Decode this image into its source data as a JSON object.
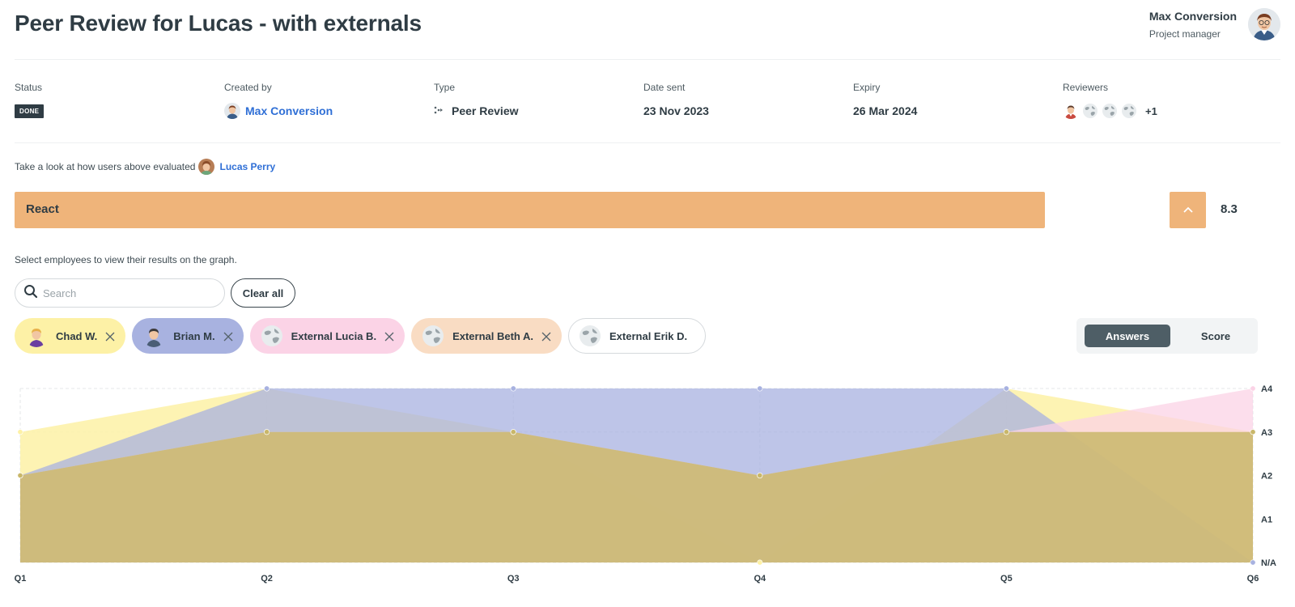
{
  "header": {
    "title": "Peer Review for Lucas - with externals",
    "user_name": "Max Conversion",
    "user_role": "Project manager"
  },
  "meta": {
    "status_label": "Status",
    "status_value": "DONE",
    "created_by_label": "Created by",
    "created_by_value": "Max Conversion",
    "type_label": "Type",
    "type_value": "Peer Review",
    "date_sent_label": "Date sent",
    "date_sent_value": "23 Nov 2023",
    "expiry_label": "Expiry",
    "expiry_value": "26 Mar 2024",
    "reviewers_label": "Reviewers",
    "reviewers_more": "+1"
  },
  "intro": {
    "text": "Take a look at how users above evaluated",
    "subject_name": "Lucas Perry"
  },
  "skill": {
    "name": "React",
    "score": "8.3",
    "color": "#efb47a"
  },
  "filters": {
    "hint": "Select employees to view their results on the graph.",
    "search_placeholder": "Search",
    "clear_all": "Clear all",
    "chips": [
      {
        "label": "Chad W.",
        "bg": "#fdf1a6",
        "selected": true
      },
      {
        "label": "Brian M.",
        "bg": "#a8b2e0",
        "selected": true
      },
      {
        "label": "External Lucia B.",
        "bg": "#fbd3e6",
        "selected": true
      },
      {
        "label": "External Beth A.",
        "bg": "#f9dcc3",
        "selected": true
      },
      {
        "label": "External Erik D.",
        "bg": "#ffffff",
        "selected": false
      }
    ]
  },
  "view_toggle": {
    "answers": "Answers",
    "score": "Score",
    "active": "answers"
  },
  "chart_data": {
    "type": "area",
    "categories": [
      "Q1",
      "Q2",
      "Q3",
      "Q4",
      "Q5",
      "Q6"
    ],
    "y_levels": [
      "N/A",
      "A1",
      "A2",
      "A3",
      "A4"
    ],
    "legend": "none",
    "grid": true,
    "series": [
      {
        "name": "Chad W.",
        "color": "#fdf1a6",
        "values": [
          3,
          4,
          3,
          0,
          4,
          3
        ]
      },
      {
        "name": "Brian M.",
        "color": "#a8b2e0",
        "values": [
          2,
          4,
          4,
          4,
          4,
          0
        ]
      },
      {
        "name": "External Lucia B.",
        "color": "#fbd3e6",
        "values": [
          2,
          3,
          3,
          2,
          3,
          4
        ]
      },
      {
        "name": "External Beth A.",
        "color": "#c9b76a",
        "values": [
          2,
          3,
          3,
          2,
          3,
          3
        ]
      }
    ]
  }
}
